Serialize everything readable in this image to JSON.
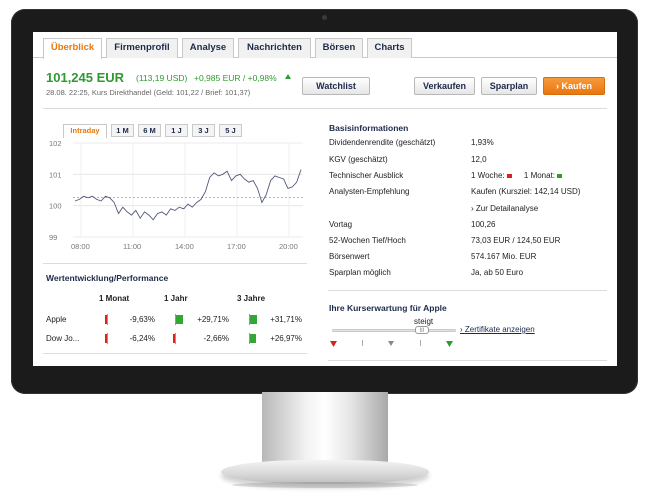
{
  "tabs": [
    "Überblick",
    "Firmenprofil",
    "Analyse",
    "Nachrichten",
    "Börsen",
    "Charts"
  ],
  "header": {
    "price": "101,245 EUR",
    "price_usd": "(113,19 USD)",
    "change": "+0,985  EUR  /  +0,98%",
    "meta": "28.08. 22:25, Kurs Direkthandel (Geld: 101,22 / Brief: 101,37)"
  },
  "buttons": {
    "watchlist": "Watchlist",
    "sell": "Verkaufen",
    "savings": "Sparplan",
    "buy": "›  Kaufen"
  },
  "chart_tabs": [
    "Intraday",
    "1 M",
    "6 M",
    "1 J",
    "3 J",
    "5 J"
  ],
  "chart_data": {
    "type": "line",
    "x_ticks": [
      "08:00",
      "11:00",
      "14:00",
      "17:00",
      "20:00"
    ],
    "y_ticks": [
      99,
      100,
      101,
      102
    ],
    "ylim": [
      99,
      102
    ],
    "reference": 100.26,
    "series": [
      {
        "values": [
          100.15,
          100.2,
          100.3,
          100.25,
          100.3,
          100.2,
          100.15,
          100.3,
          100.25,
          100.1,
          99.75,
          99.95,
          99.8,
          99.7,
          99.85,
          99.6,
          99.8,
          99.7,
          99.55,
          99.75,
          99.8,
          99.7,
          99.9,
          99.85,
          99.95,
          99.9,
          100.05,
          99.95,
          100.1,
          100.2,
          100.45,
          100.9,
          101.05,
          100.95,
          101.0,
          101.1,
          100.8,
          100.95,
          101.0,
          100.85,
          100.75,
          100.8,
          100.55,
          100.1,
          100.35,
          100.8,
          100.95,
          100.9,
          100.85,
          100.55,
          100.6,
          100.75,
          101.15
        ]
      }
    ]
  },
  "performance": {
    "title": "Wertentwicklung/Performance",
    "columns": [
      "1 Monat",
      "1 Jahr",
      "3 Jahre"
    ],
    "rows": [
      {
        "name": "Apple",
        "values": [
          "-9,63%",
          "+29,71%",
          "+31,71%"
        ],
        "numbers": [
          -9.63,
          29.71,
          31.71
        ]
      },
      {
        "name": "Dow Jo...",
        "values": [
          "-6,24%",
          "-2,66%",
          "+26,97%"
        ],
        "numbers": [
          -6.24,
          -2.66,
          26.97
        ]
      }
    ]
  },
  "info": {
    "title": "Basisinformationen",
    "rows": [
      {
        "label": "Dividendenrendite (geschätzt)",
        "value": "1,93%"
      },
      {
        "label": "KGV (geschätzt)",
        "value": "12,0"
      },
      {
        "label": "Technischer Ausblick",
        "value_week": "1 Woche:",
        "value_month": "1 Monat:"
      },
      {
        "label": "Analysten-Empfehlung",
        "value": "Kaufen (Kursziel: 142,14 USD)"
      },
      {
        "label": "",
        "value": "› Zur Detailanalyse"
      },
      {
        "label": "Vortag",
        "value": "100,26"
      },
      {
        "label": "52-Wochen Tief/Hoch",
        "value": "73,03 EUR / 124,50 EUR"
      },
      {
        "label": "Börsenwert",
        "value": "574.167 Mio. EUR"
      },
      {
        "label": "Sparplan möglich",
        "value": "Ja, ab 50 Euro"
      }
    ]
  },
  "expectation": {
    "title": "Ihre Kurserwartung für Apple",
    "label": "steigt",
    "handle": "|||",
    "link": "Zertifikate anzeigen"
  }
}
